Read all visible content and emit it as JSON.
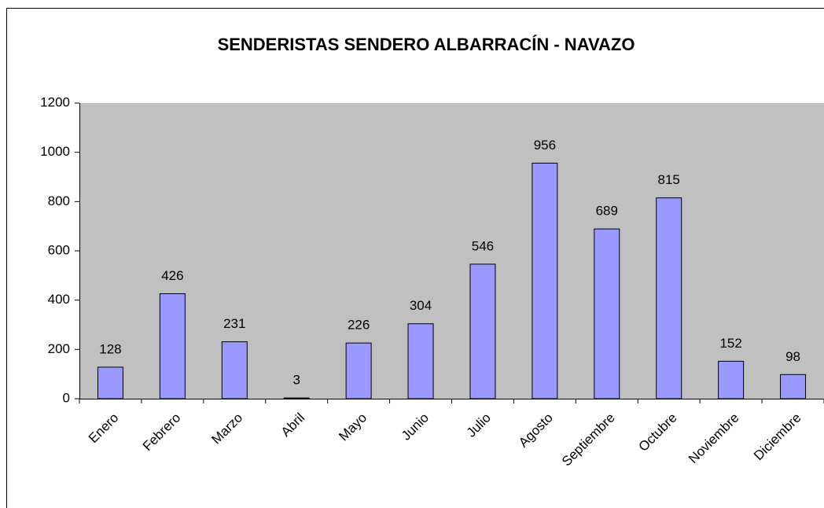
{
  "chart_data": {
    "type": "bar",
    "title": "SENDERISTAS SENDERO ALBARRACÍN - NAVAZO",
    "categories": [
      "Enero",
      "Febrero",
      "Marzo",
      "Abril",
      "Mayo",
      "Junio",
      "Julio",
      "Agosto",
      "Septiembre",
      "Octubre",
      "Noviembre",
      "Diciembre"
    ],
    "values": [
      128,
      426,
      231,
      3,
      226,
      304,
      546,
      956,
      689,
      815,
      152,
      98
    ],
    "color": "#9999ff",
    "ylim": [
      0,
      1200
    ],
    "yticks": [
      0,
      200,
      400,
      600,
      800,
      1000,
      1200
    ],
    "grid": false
  }
}
